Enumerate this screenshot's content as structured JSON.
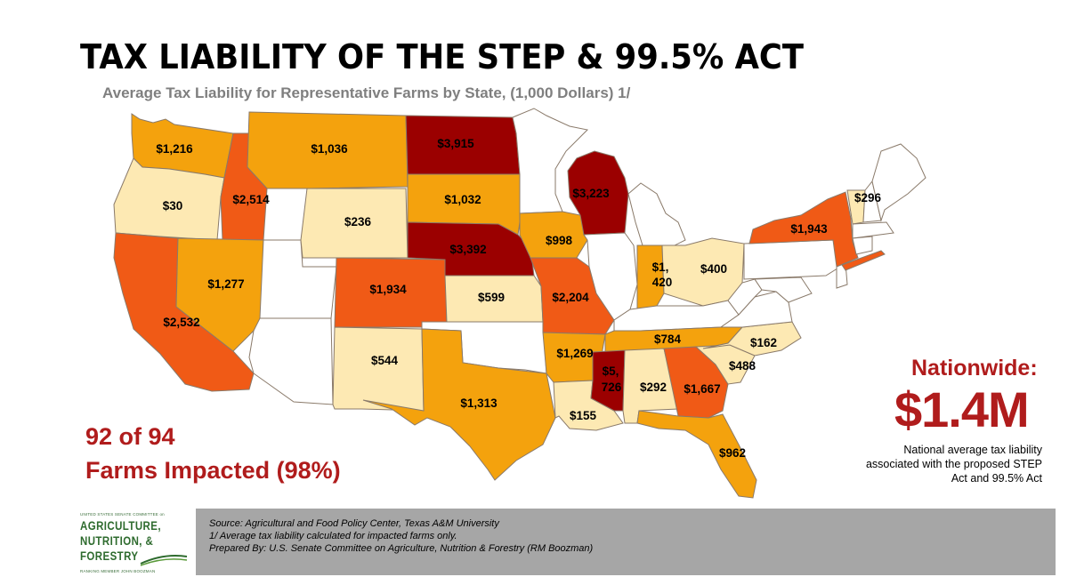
{
  "title": "TAX LIABILITY OF THE STEP & 99.5% ACT",
  "subtitle": "Average Tax Liability for Representative Farms by State, (1,000 Dollars) 1/",
  "colors": {
    "light": "#fde9b3",
    "orange": "#f4a20d",
    "dark_orange": "#f05a16",
    "dark_red": "#9b0000",
    "none": "#ffffff",
    "accent_red": "#b01c1c",
    "footer_gray": "#a6a6a6"
  },
  "states": {
    "WA": {
      "label": "$1,216",
      "tier": "orange"
    },
    "OR": {
      "label": "$30",
      "tier": "light"
    },
    "CA": {
      "label": "$2,532",
      "tier": "dark_orange"
    },
    "ID": {
      "label": "$2,514",
      "tier": "dark_orange"
    },
    "NV": {
      "label": "$1,277",
      "tier": "orange"
    },
    "MT": {
      "label": "$1,036",
      "tier": "orange"
    },
    "WY": {
      "label": "$236",
      "tier": "light"
    },
    "CO": {
      "label": "$1,934",
      "tier": "dark_orange"
    },
    "NM": {
      "label": "$544",
      "tier": "light"
    },
    "ND": {
      "label": "$3,915",
      "tier": "dark_red"
    },
    "SD": {
      "label": "$1,032",
      "tier": "orange"
    },
    "NE": {
      "label": "$3,392",
      "tier": "dark_red"
    },
    "KS": {
      "label": "$599",
      "tier": "light"
    },
    "TX": {
      "label": "$1,313",
      "tier": "orange"
    },
    "IA": {
      "label": "$998",
      "tier": "orange"
    },
    "MO": {
      "label": "$2,204",
      "tier": "dark_orange"
    },
    "AR": {
      "label": "$1,269",
      "tier": "orange"
    },
    "LA": {
      "label": "$155",
      "tier": "light"
    },
    "WI": {
      "label": "$3,223",
      "tier": "dark_red"
    },
    "IN": {
      "label1": "$1,",
      "label2": "420",
      "tier": "orange"
    },
    "OH": {
      "label": "$400",
      "tier": "light"
    },
    "TN": {
      "label": "$784",
      "tier": "orange"
    },
    "MS": {
      "label1": "$5,",
      "label2": "726",
      "tier": "dark_red"
    },
    "AL": {
      "label": "$292",
      "tier": "light"
    },
    "GA": {
      "label": "$1,667",
      "tier": "dark_orange"
    },
    "FL": {
      "label": "$962",
      "tier": "orange"
    },
    "NC": {
      "label": "$162",
      "tier": "light"
    },
    "SC": {
      "label": "$488",
      "tier": "light"
    },
    "NY": {
      "label": "$1,943",
      "tier": "dark_orange"
    },
    "VT": {
      "label": "$296",
      "tier": "light"
    }
  },
  "impact": {
    "line1": "92 of 94",
    "line2": "Farms Impacted (98%)"
  },
  "nationwide": {
    "title": "Nationwide:",
    "value": "$1.4M",
    "note": "National average tax liability associated with the proposed STEP Act and 99.5% Act"
  },
  "footer": {
    "source": "Source: Agricultural and Food Policy Center, Texas A&M University",
    "note": "1/ Average tax liability calculated for impacted farms only.",
    "prepared": "Prepared By: U.S. Senate Committee on Agriculture, Nutrition & Forestry (RM Boozman)"
  },
  "logo": {
    "top_text": "UNITED STATES SENATE COMMITTEE on",
    "line1": "AGRICULTURE,",
    "line2": "NUTRITION, &",
    "line3": "FORESTRY",
    "bottom_text": "RANKING MEMBER JOHN BOOZMAN"
  }
}
